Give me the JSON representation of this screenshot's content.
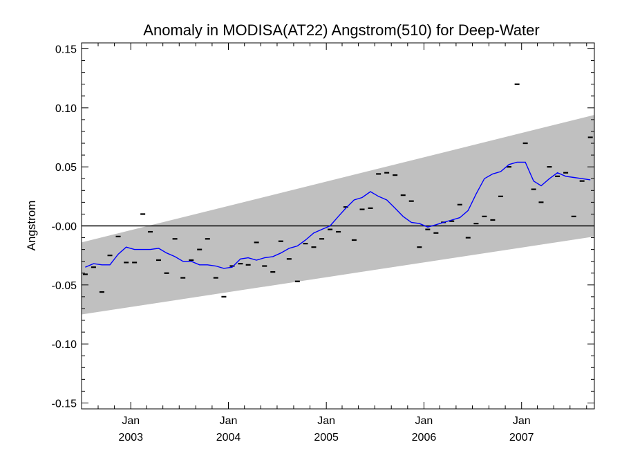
{
  "chart_data": {
    "type": "scatter",
    "title": "Anomaly in MODISA(AT22) Angstrom(510) for Deep-Water",
    "xlabel": "",
    "ylabel": "Angstrom",
    "xlim": [
      "2002-07-01",
      "2007-09-30"
    ],
    "ylim": [
      -0.155,
      0.155
    ],
    "grid": false,
    "legend": "none",
    "y_ticks": [
      {
        "value": 0.15,
        "label": "0.15"
      },
      {
        "value": 0.1,
        "label": "0.10"
      },
      {
        "value": 0.05,
        "label": "0.05"
      },
      {
        "value": 0.0,
        "label": "-0.00"
      },
      {
        "value": -0.05,
        "label": "-0.05"
      },
      {
        "value": -0.1,
        "label": "-0.10"
      },
      {
        "value": -0.15,
        "label": "-0.15"
      }
    ],
    "x_ticks": [
      {
        "date": "2003-01-01",
        "month": "Jan",
        "year": "2003"
      },
      {
        "date": "2004-01-01",
        "month": "Jan",
        "year": "2004"
      },
      {
        "date": "2005-01-01",
        "month": "Jan",
        "year": "2005"
      },
      {
        "date": "2006-01-01",
        "month": "Jan",
        "year": "2006"
      },
      {
        "date": "2007-01-01",
        "month": "Jan",
        "year": "2007"
      }
    ],
    "band": {
      "x": [
        "2002-07-01",
        "2007-09-30"
      ],
      "lower": [
        -0.075,
        -0.009
      ],
      "upper": [
        -0.014,
        0.094
      ]
    },
    "zero_line": 0.0,
    "colors": {
      "band": "#c0c0c0",
      "smooth": "#0000ff",
      "points": "#000000",
      "zero_line": "#000000"
    },
    "series": [
      {
        "type": "scatter",
        "x": [
          "2002-07",
          "2002-08",
          "2002-09",
          "2002-10",
          "2002-11",
          "2002-12",
          "2003-01",
          "2003-02",
          "2003-03",
          "2003-04",
          "2003-05",
          "2003-06",
          "2003-07",
          "2003-08",
          "2003-09",
          "2003-10",
          "2003-11",
          "2003-12",
          "2004-01",
          "2004-02",
          "2004-03",
          "2004-04",
          "2004-05",
          "2004-06",
          "2004-07",
          "2004-08",
          "2004-09",
          "2004-10",
          "2004-11",
          "2004-12",
          "2005-01",
          "2005-02",
          "2005-03",
          "2005-04",
          "2005-05",
          "2005-06",
          "2005-07",
          "2005-08",
          "2005-09",
          "2005-10",
          "2005-11",
          "2005-12",
          "2006-01",
          "2006-02",
          "2006-03",
          "2006-04",
          "2006-05",
          "2006-06",
          "2006-07",
          "2006-08",
          "2006-09",
          "2006-10",
          "2006-11",
          "2006-12",
          "2007-01",
          "2007-02",
          "2007-03",
          "2007-04",
          "2007-05",
          "2007-06",
          "2007-07",
          "2007-08",
          "2007-09"
        ],
        "y": [
          -0.041,
          -0.035,
          -0.056,
          -0.025,
          -0.009,
          -0.031,
          -0.031,
          0.01,
          -0.005,
          -0.029,
          -0.04,
          -0.011,
          -0.044,
          -0.029,
          -0.02,
          -0.011,
          -0.044,
          -0.06,
          -0.034,
          -0.032,
          -0.033,
          -0.014,
          -0.034,
          -0.039,
          -0.013,
          -0.028,
          -0.047,
          -0.015,
          -0.018,
          -0.011,
          -0.003,
          -0.005,
          0.016,
          -0.012,
          0.014,
          0.015,
          0.044,
          0.045,
          0.043,
          0.026,
          0.021,
          -0.018,
          -0.003,
          -0.006,
          0.003,
          0.004,
          0.018,
          -0.01,
          0.002,
          0.008,
          0.005,
          0.025,
          0.05,
          0.12,
          0.07,
          0.031,
          0.02,
          0.05,
          0.042,
          0.045,
          0.008,
          0.038,
          0.075
        ]
      },
      {
        "type": "line",
        "x": [
          "2002-07",
          "2002-08",
          "2002-09",
          "2002-10",
          "2002-11",
          "2002-12",
          "2003-01",
          "2003-02",
          "2003-03",
          "2003-04",
          "2003-05",
          "2003-06",
          "2003-07",
          "2003-08",
          "2003-09",
          "2003-10",
          "2003-11",
          "2003-12",
          "2004-01",
          "2004-02",
          "2004-03",
          "2004-04",
          "2004-05",
          "2004-06",
          "2004-07",
          "2004-08",
          "2004-09",
          "2004-10",
          "2004-11",
          "2004-12",
          "2005-01",
          "2005-02",
          "2005-03",
          "2005-04",
          "2005-05",
          "2005-06",
          "2005-07",
          "2005-08",
          "2005-09",
          "2005-10",
          "2005-11",
          "2005-12",
          "2006-01",
          "2006-02",
          "2006-03",
          "2006-04",
          "2006-05",
          "2006-06",
          "2006-07",
          "2006-08",
          "2006-09",
          "2006-10",
          "2006-11",
          "2006-12",
          "2007-01",
          "2007-02",
          "2007-03",
          "2007-04",
          "2007-05",
          "2007-06",
          "2007-07",
          "2007-08",
          "2007-09"
        ],
        "y": [
          -0.035,
          -0.032,
          -0.033,
          -0.033,
          -0.024,
          -0.018,
          -0.02,
          -0.02,
          -0.02,
          -0.019,
          -0.023,
          -0.026,
          -0.03,
          -0.03,
          -0.033,
          -0.033,
          -0.034,
          -0.036,
          -0.035,
          -0.028,
          -0.027,
          -0.029,
          -0.027,
          -0.026,
          -0.023,
          -0.019,
          -0.017,
          -0.012,
          -0.006,
          -0.003,
          0.0,
          0.008,
          0.015,
          0.022,
          0.024,
          0.029,
          0.025,
          0.022,
          0.015,
          0.008,
          0.003,
          0.002,
          -0.001,
          0.001,
          0.003,
          0.005,
          0.007,
          0.013,
          0.027,
          0.04,
          0.044,
          0.046,
          0.052,
          0.054,
          0.054,
          0.038,
          0.034,
          0.04,
          0.045,
          0.042,
          0.041,
          0.04,
          0.039
        ]
      }
    ]
  }
}
